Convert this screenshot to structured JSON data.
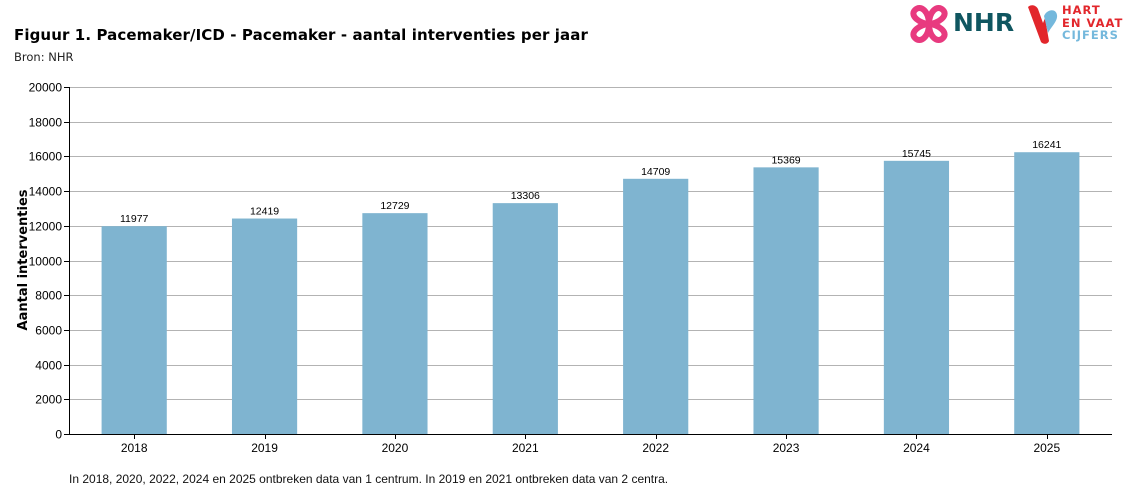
{
  "header": {
    "title": "Figuur 1. Pacemaker/ICD - Pacemaker - aantal interventies per jaar",
    "source": "Bron: NHR"
  },
  "logos": {
    "nhr": {
      "text": "NHR",
      "icon": "nhr-cross-icon",
      "icon_color": "#e83a7f",
      "text_color": "#0f5660"
    },
    "hart_en_vaat": {
      "lines": [
        "HART",
        "EN VAAT",
        "CIJFERS"
      ],
      "icon": "heart-drop-icon",
      "colors": [
        "#e2262b",
        "#74b8dc"
      ]
    }
  },
  "chart_data": {
    "type": "bar",
    "categories": [
      "2018",
      "2019",
      "2020",
      "2021",
      "2022",
      "2023",
      "2024",
      "2025"
    ],
    "values": [
      11977,
      12419,
      12729,
      13306,
      14709,
      15369,
      15745,
      16241
    ],
    "data_labels": [
      "11977",
      "12419",
      "12729",
      "13306",
      "14709",
      "15369",
      "15745",
      "16241"
    ],
    "title": "Figuur 1. Pacemaker/ICD - Pacemaker - aantal interventies per jaar",
    "xlabel": "",
    "ylabel": "Aantal interventies",
    "ylim": [
      0,
      20000
    ],
    "yticks": [
      0,
      2000,
      4000,
      6000,
      8000,
      10000,
      12000,
      14000,
      16000,
      18000,
      20000
    ],
    "grid": true,
    "bar_color": "#7fb4d0",
    "grid_color": "#b3b3b3"
  },
  "footnote": "In 2018, 2020, 2022, 2024 en 2025 ontbreken data van 1 centrum. In 2019 en 2021 ontbreken data van 2 centra."
}
